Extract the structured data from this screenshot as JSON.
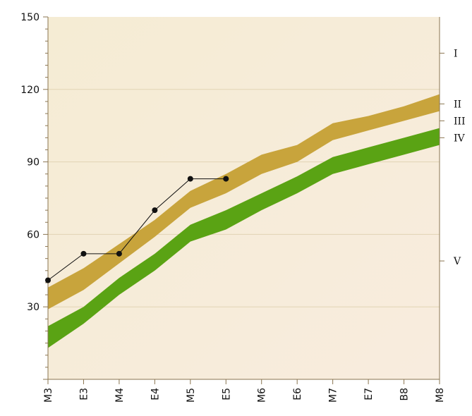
{
  "chart_data": {
    "type": "line",
    "categories": [
      "M3",
      "E3",
      "M4",
      "E4",
      "M5",
      "E5",
      "M6",
      "E6",
      "M7",
      "E7",
      "B8",
      "M8"
    ],
    "y_range": [
      0,
      150
    ],
    "y_ticks": [
      30,
      60,
      90,
      120,
      150
    ],
    "y_tick_labels": [
      "30",
      "60",
      "90",
      "120",
      "150"
    ],
    "grid": true,
    "bands": [
      {
        "color": "#c8a43c",
        "lower": [
          29,
          37,
          48,
          59,
          71,
          77,
          85,
          90,
          99,
          103,
          107,
          111
        ],
        "upper": [
          38,
          46,
          56,
          66,
          78,
          85,
          93,
          97,
          106,
          109,
          113,
          118
        ]
      },
      {
        "color": "#5aa314",
        "lower": [
          13,
          23,
          35,
          45,
          57,
          62,
          70,
          77,
          85,
          89,
          93,
          97
        ],
        "upper": [
          22,
          30,
          42,
          52,
          64,
          70,
          77,
          84,
          92,
          96,
          100,
          104
        ]
      }
    ],
    "series": [
      {
        "color": "#111111",
        "points": [
          {
            "category": "M3",
            "value": 41
          },
          {
            "category": "E3",
            "value": 52
          },
          {
            "category": "M4",
            "value": 52
          },
          {
            "category": "E4",
            "value": 70
          },
          {
            "category": "M5",
            "value": 83
          },
          {
            "category": "E5",
            "value": 83
          }
        ]
      }
    ],
    "right_axis_labels": [
      {
        "label": "I",
        "value": 135
      },
      {
        "label": "II",
        "value": 114
      },
      {
        "label": "III",
        "value": 107
      },
      {
        "label": "IV",
        "value": 100
      },
      {
        "label": "V",
        "value": 49
      }
    ],
    "colors": {
      "plot_background_top": "#f5ecd4",
      "plot_background_bottom": "#f8ecde",
      "axis": "#8a7550",
      "grid": "#e2d3b4"
    }
  }
}
